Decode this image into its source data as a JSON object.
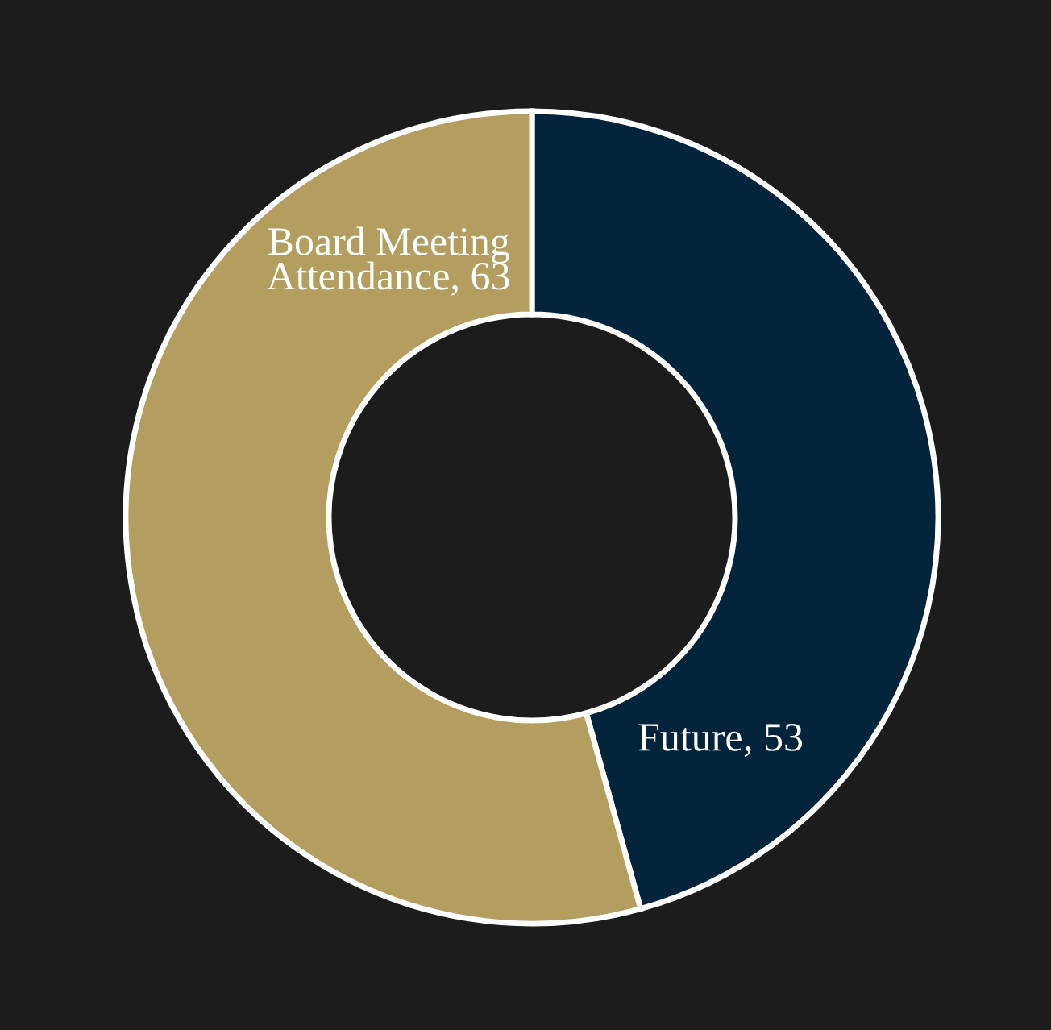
{
  "chart_data": {
    "type": "donut",
    "categories": [
      "Future",
      "Board Meeting Attendance"
    ],
    "values": [
      53,
      63
    ],
    "colors": [
      "#03243a",
      "#b39e5f"
    ],
    "value_labels": [
      ", 53",
      ", 63"
    ],
    "legend": false
  }
}
